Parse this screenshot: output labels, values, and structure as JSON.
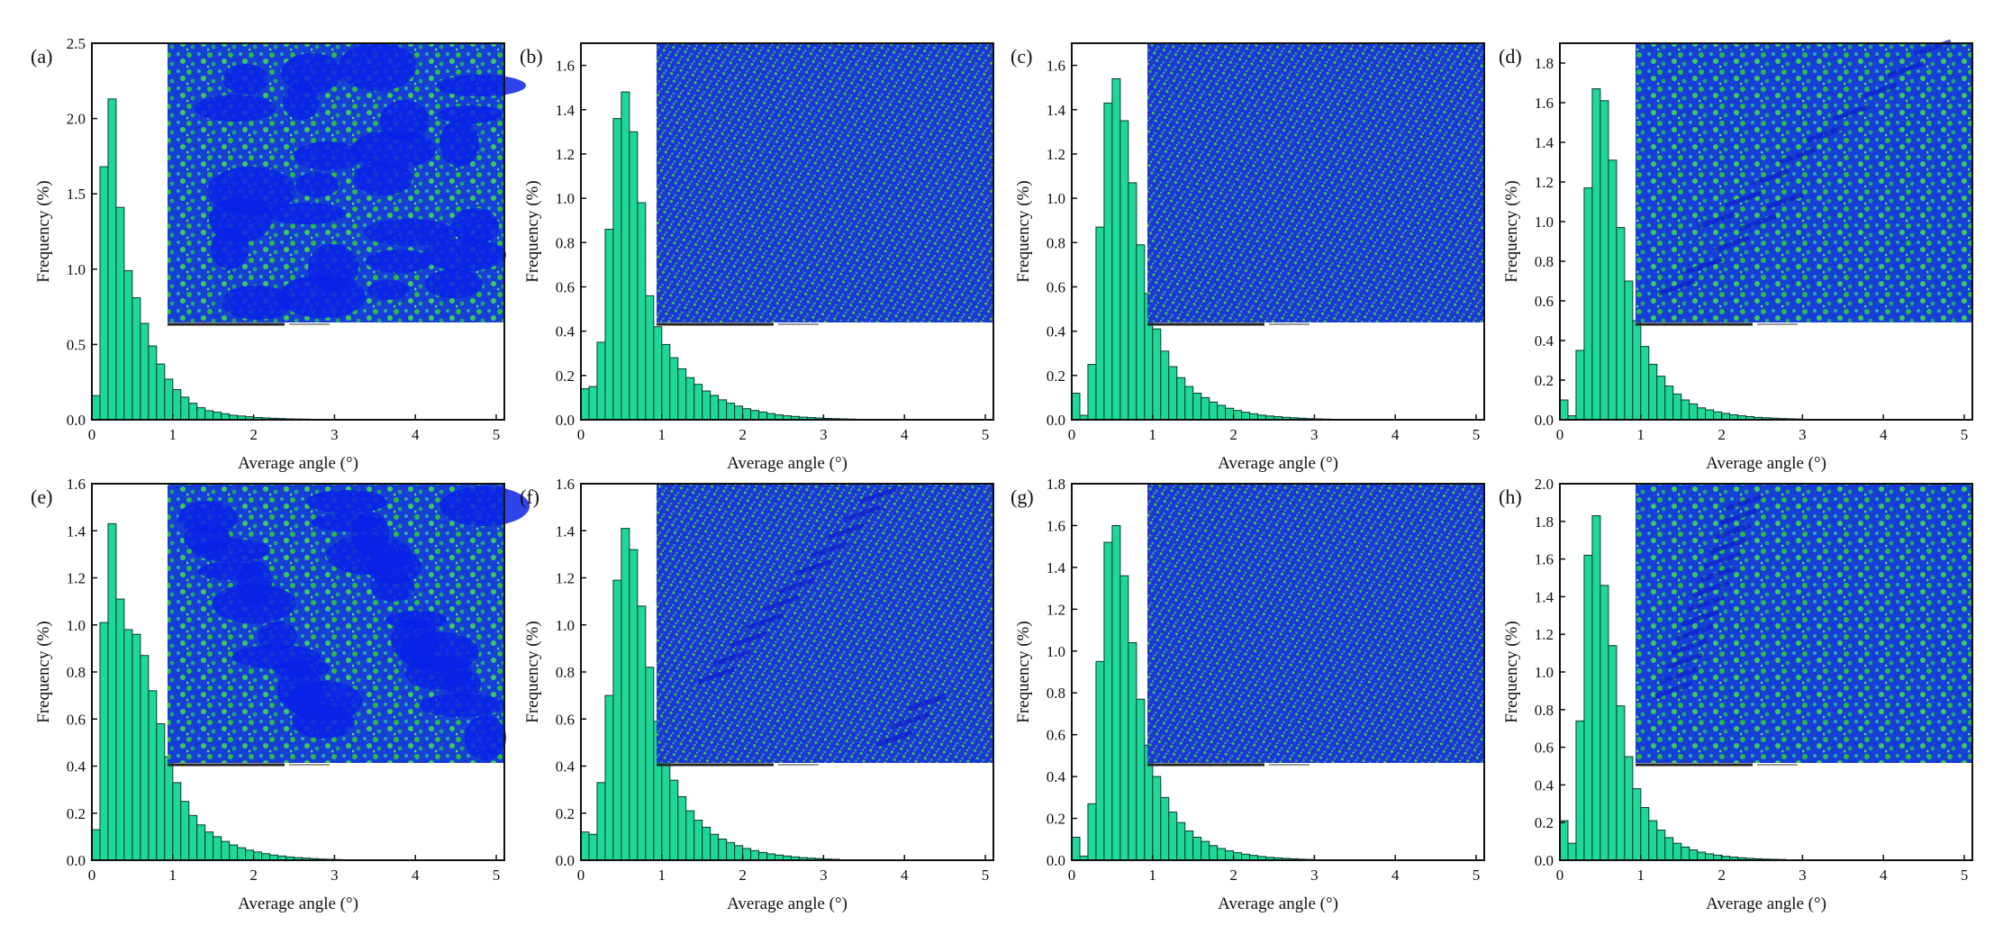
{
  "figure": {
    "background": "#ffffff",
    "bar_fill": "#1ed79a",
    "bar_stroke": "#0b3a28",
    "inset_base": "#0a22e8",
    "inset_green": "#2cb84a",
    "inset_teal": "#1f8fa0"
  },
  "chart_data": [
    {
      "type": "bar",
      "panel": "(a)",
      "xlabel": "Average angle (°)",
      "ylabel": "Frequency (%)",
      "xlim": [
        0,
        5.1
      ],
      "ylim": [
        0,
        2.5
      ],
      "xticks": [
        "0",
        "1",
        "2",
        "3",
        "4",
        "5"
      ],
      "yticks": [
        "0.0",
        "0.5",
        "1.0",
        "1.5",
        "2.0",
        "2.5"
      ],
      "ytick_values": [
        0,
        0.5,
        1.0,
        1.5,
        2.0,
        2.5
      ],
      "bin_width": 0.1,
      "values": [
        0.16,
        1.68,
        2.13,
        1.41,
        0.99,
        0.81,
        0.64,
        0.49,
        0.37,
        0.27,
        0.2,
        0.15,
        0.11,
        0.08,
        0.06,
        0.05,
        0.04,
        0.03,
        0.025,
        0.02,
        0.015,
        0.012,
        0.01,
        0.008,
        0.006,
        0.005,
        0.004,
        0.003,
        0.003,
        0.002
      ],
      "inset": "micrograph"
    },
    {
      "type": "bar",
      "panel": "(b)",
      "xlabel": "Average angle (°)",
      "ylabel": "Frequency (%)",
      "xlim": [
        0,
        5.1
      ],
      "ylim": [
        0,
        1.7
      ],
      "xticks": [
        "0",
        "1",
        "2",
        "3",
        "4",
        "5"
      ],
      "yticks": [
        "0.0",
        "0.2",
        "0.4",
        "0.6",
        "0.8",
        "1.0",
        "1.2",
        "1.4",
        "1.6"
      ],
      "ytick_values": [
        0,
        0.2,
        0.4,
        0.6,
        0.8,
        1.0,
        1.2,
        1.4,
        1.6
      ],
      "bin_width": 0.1,
      "values": [
        0.14,
        0.15,
        0.35,
        0.86,
        1.36,
        1.48,
        1.3,
        0.98,
        0.56,
        0.42,
        0.34,
        0.28,
        0.23,
        0.19,
        0.16,
        0.13,
        0.11,
        0.09,
        0.075,
        0.062,
        0.05,
        0.042,
        0.035,
        0.028,
        0.022,
        0.018,
        0.015,
        0.012,
        0.01,
        0.008,
        0.006,
        0.005,
        0.004,
        0.003
      ],
      "inset": "micrograph"
    },
    {
      "type": "bar",
      "panel": "(c)",
      "xlabel": "Average angle (°)",
      "ylabel": "Frequency (%)",
      "xlim": [
        0,
        5.1
      ],
      "ylim": [
        0,
        1.7
      ],
      "xticks": [
        "0",
        "1",
        "2",
        "3",
        "4",
        "5"
      ],
      "yticks": [
        "0.0",
        "0.2",
        "0.4",
        "0.6",
        "0.8",
        "1.0",
        "1.2",
        "1.4",
        "1.6"
      ],
      "ytick_values": [
        0,
        0.2,
        0.4,
        0.6,
        0.8,
        1.0,
        1.2,
        1.4,
        1.6
      ],
      "bin_width": 0.1,
      "values": [
        0.12,
        0.02,
        0.25,
        0.87,
        1.43,
        1.54,
        1.35,
        1.07,
        0.79,
        0.57,
        0.41,
        0.31,
        0.24,
        0.19,
        0.15,
        0.12,
        0.1,
        0.08,
        0.065,
        0.052,
        0.042,
        0.034,
        0.027,
        0.021,
        0.017,
        0.014,
        0.011,
        0.009,
        0.007,
        0.005,
        0.004,
        0.003
      ],
      "inset": "micrograph"
    },
    {
      "type": "bar",
      "panel": "(d)",
      "xlabel": "Average angle (°)",
      "ylabel": "Frequency (%)",
      "xlim": [
        0,
        5.1
      ],
      "ylim": [
        0,
        1.9
      ],
      "xticks": [
        "0",
        "1",
        "2",
        "3",
        "4",
        "5"
      ],
      "yticks": [
        "0.0",
        "0.2",
        "0.4",
        "0.6",
        "0.8",
        "1.0",
        "1.2",
        "1.4",
        "1.6",
        "1.8"
      ],
      "ytick_values": [
        0,
        0.2,
        0.4,
        0.6,
        0.8,
        1.0,
        1.2,
        1.4,
        1.6,
        1.8
      ],
      "bin_width": 0.1,
      "values": [
        0.1,
        0.02,
        0.35,
        1.17,
        1.67,
        1.61,
        1.31,
        0.97,
        0.7,
        0.5,
        0.37,
        0.28,
        0.22,
        0.17,
        0.13,
        0.1,
        0.08,
        0.06,
        0.05,
        0.04,
        0.032,
        0.025,
        0.02,
        0.016,
        0.012,
        0.01,
        0.008,
        0.006,
        0.005,
        0.004
      ],
      "inset": "micrograph"
    },
    {
      "type": "bar",
      "panel": "(e)",
      "xlabel": "Average angle (°)",
      "ylabel": "Frequency (%)",
      "xlim": [
        0,
        5.1
      ],
      "ylim": [
        0,
        1.6
      ],
      "xticks": [
        "0",
        "1",
        "2",
        "3",
        "4",
        "5"
      ],
      "yticks": [
        "0.0",
        "0.2",
        "0.4",
        "0.6",
        "0.8",
        "1.0",
        "1.2",
        "1.4",
        "1.6"
      ],
      "ytick_values": [
        0,
        0.2,
        0.4,
        0.6,
        0.8,
        1.0,
        1.2,
        1.4,
        1.6
      ],
      "bin_width": 0.1,
      "values": [
        0.13,
        1.01,
        1.43,
        1.11,
        0.98,
        0.96,
        0.87,
        0.72,
        0.58,
        0.44,
        0.33,
        0.25,
        0.19,
        0.15,
        0.12,
        0.1,
        0.08,
        0.065,
        0.053,
        0.043,
        0.035,
        0.028,
        0.022,
        0.018,
        0.014,
        0.011,
        0.009,
        0.007,
        0.005,
        0.004,
        0.003
      ],
      "inset": "micrograph"
    },
    {
      "type": "bar",
      "panel": "(f)",
      "xlabel": "Average angle (°)",
      "ylabel": "Frequency (%)",
      "xlim": [
        0,
        5.1
      ],
      "ylim": [
        0,
        1.6
      ],
      "xticks": [
        "0",
        "1",
        "2",
        "3",
        "4",
        "5"
      ],
      "yticks": [
        "0.0",
        "0.2",
        "0.4",
        "0.6",
        "0.8",
        "1.0",
        "1.2",
        "1.4",
        "1.6"
      ],
      "ytick_values": [
        0,
        0.2,
        0.4,
        0.6,
        0.8,
        1.0,
        1.2,
        1.4,
        1.6
      ],
      "bin_width": 0.1,
      "values": [
        0.12,
        0.11,
        0.33,
        0.7,
        1.19,
        1.41,
        1.32,
        1.08,
        0.82,
        0.59,
        0.44,
        0.34,
        0.27,
        0.21,
        0.17,
        0.14,
        0.11,
        0.09,
        0.075,
        0.062,
        0.05,
        0.041,
        0.033,
        0.027,
        0.022,
        0.018,
        0.014,
        0.011,
        0.009,
        0.007,
        0.005,
        0.004
      ],
      "inset": "micrograph"
    },
    {
      "type": "bar",
      "panel": "(g)",
      "xlabel": "Average angle (°)",
      "ylabel": "Frequency (%)",
      "xlim": [
        0,
        5.1
      ],
      "ylim": [
        0,
        1.8
      ],
      "xticks": [
        "0",
        "1",
        "2",
        "3",
        "4",
        "5"
      ],
      "yticks": [
        "0.0",
        "0.2",
        "0.4",
        "0.6",
        "0.8",
        "1.0",
        "1.2",
        "1.4",
        "1.6",
        "1.8"
      ],
      "ytick_values": [
        0,
        0.2,
        0.4,
        0.6,
        0.8,
        1.0,
        1.2,
        1.4,
        1.6,
        1.8
      ],
      "bin_width": 0.1,
      "values": [
        0.11,
        0.02,
        0.27,
        0.95,
        1.52,
        1.6,
        1.36,
        1.04,
        0.77,
        0.55,
        0.4,
        0.3,
        0.23,
        0.18,
        0.14,
        0.11,
        0.09,
        0.07,
        0.056,
        0.045,
        0.036,
        0.029,
        0.023,
        0.018,
        0.014,
        0.011,
        0.009,
        0.007,
        0.005,
        0.004
      ],
      "inset": "micrograph"
    },
    {
      "type": "bar",
      "panel": "(h)",
      "xlabel": "Average angle (°)",
      "ylabel": "Frequency (%)",
      "xlim": [
        0,
        5.1
      ],
      "ylim": [
        0,
        2.0
      ],
      "xticks": [
        "0",
        "1",
        "2",
        "3",
        "4",
        "5"
      ],
      "yticks": [
        "0.0",
        "0.2",
        "0.4",
        "0.6",
        "0.8",
        "1.0",
        "1.2",
        "1.4",
        "1.6",
        "1.8",
        "2.0"
      ],
      "ytick_values": [
        0,
        0.2,
        0.4,
        0.6,
        0.8,
        1.0,
        1.2,
        1.4,
        1.6,
        1.8,
        2.0
      ],
      "bin_width": 0.1,
      "values": [
        0.21,
        0.09,
        0.74,
        1.62,
        1.83,
        1.46,
        1.14,
        0.82,
        0.55,
        0.38,
        0.28,
        0.21,
        0.16,
        0.12,
        0.09,
        0.07,
        0.055,
        0.043,
        0.034,
        0.027,
        0.021,
        0.017,
        0.013,
        0.01,
        0.008,
        0.006,
        0.005,
        0.004
      ],
      "inset": "micrograph"
    }
  ]
}
